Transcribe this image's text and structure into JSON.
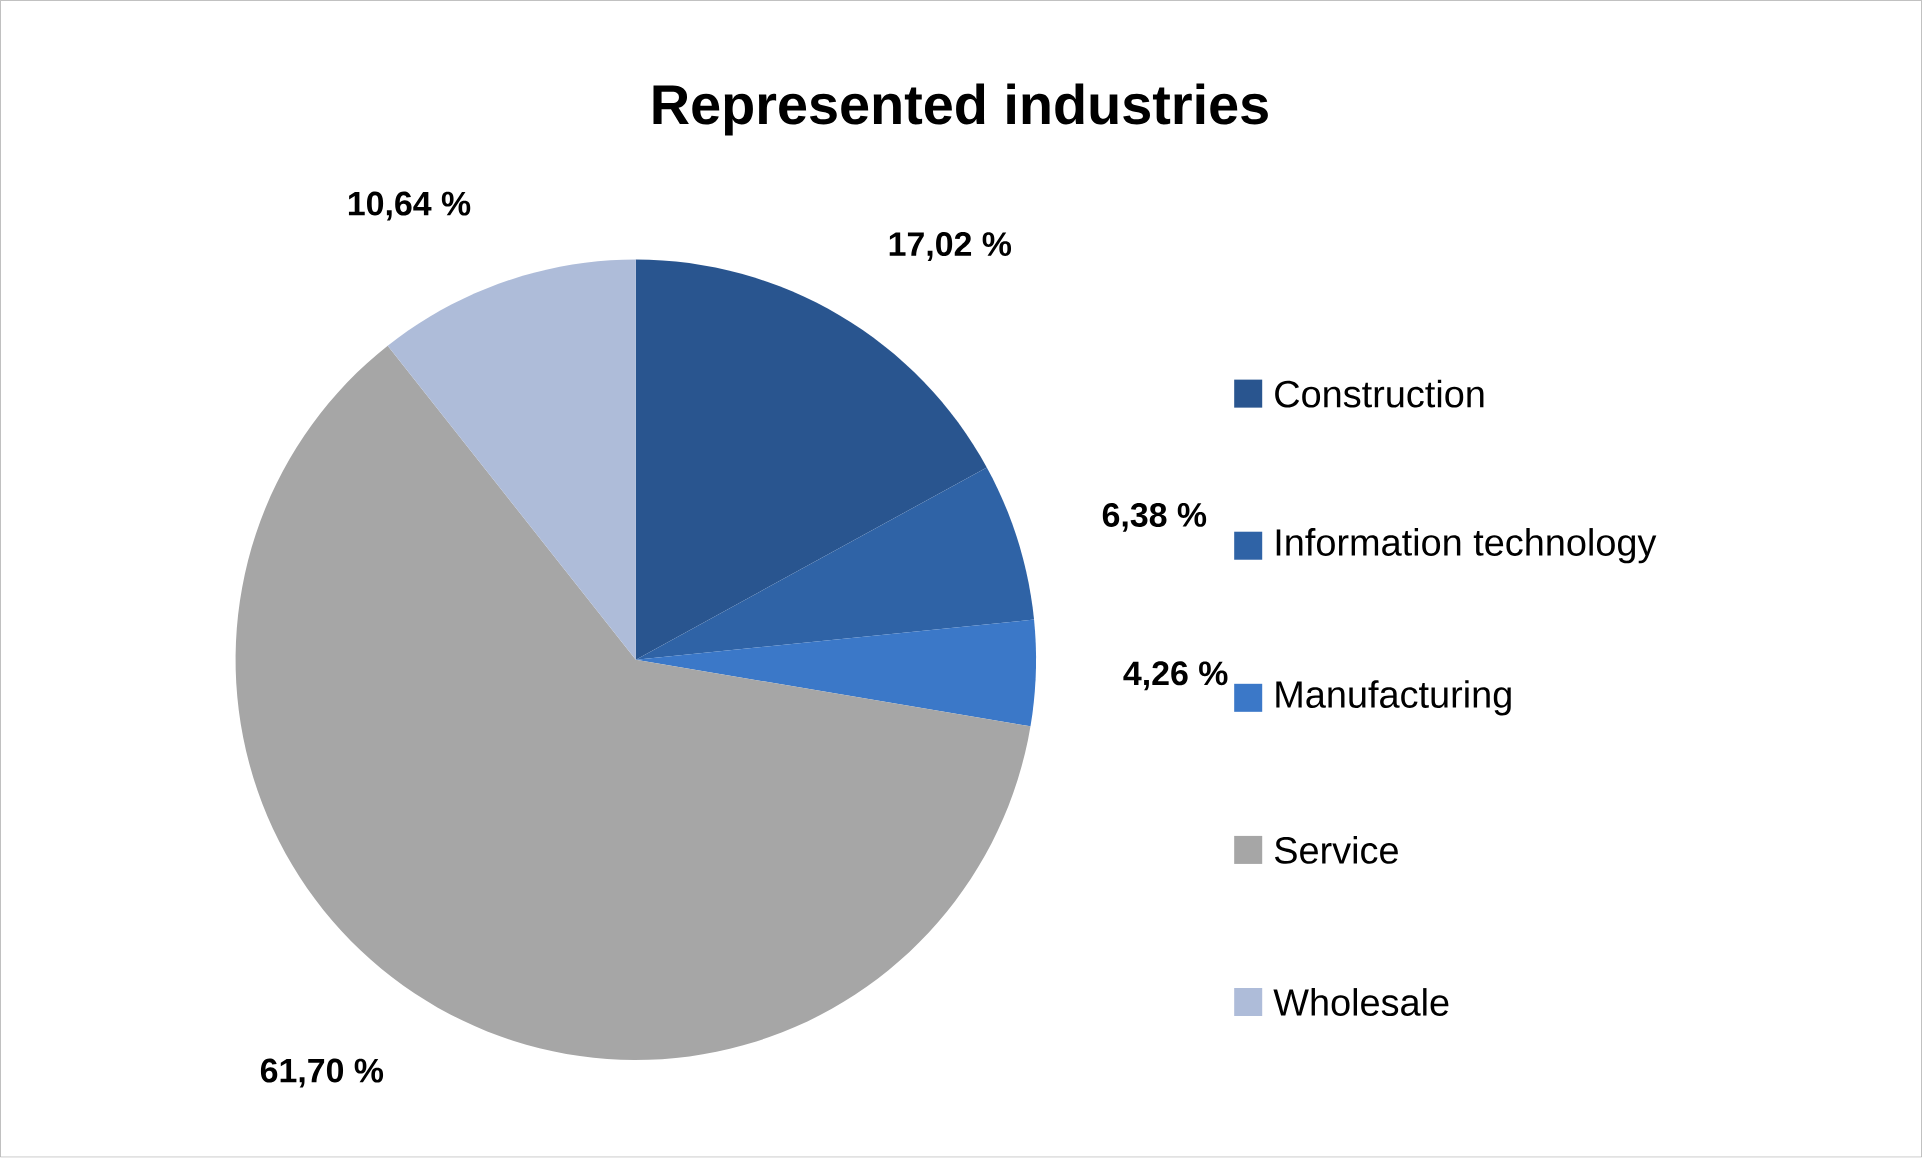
{
  "chart_data": {
    "type": "pie",
    "title": "Represented industries",
    "categories": [
      "Construction",
      "Information technology",
      "Manufacturing",
      "Service",
      "Wholesale"
    ],
    "values": [
      17.02,
      6.38,
      4.26,
      61.7,
      10.64
    ],
    "colors": [
      "#29558f",
      "#2f63a6",
      "#3b78c8",
      "#a6a6a6",
      "#aebcd9"
    ],
    "value_labels": [
      "17,02 %",
      "6,38 %",
      "4,26 %",
      "61,70 %",
      "10,64 %"
    ],
    "legend": "right"
  }
}
